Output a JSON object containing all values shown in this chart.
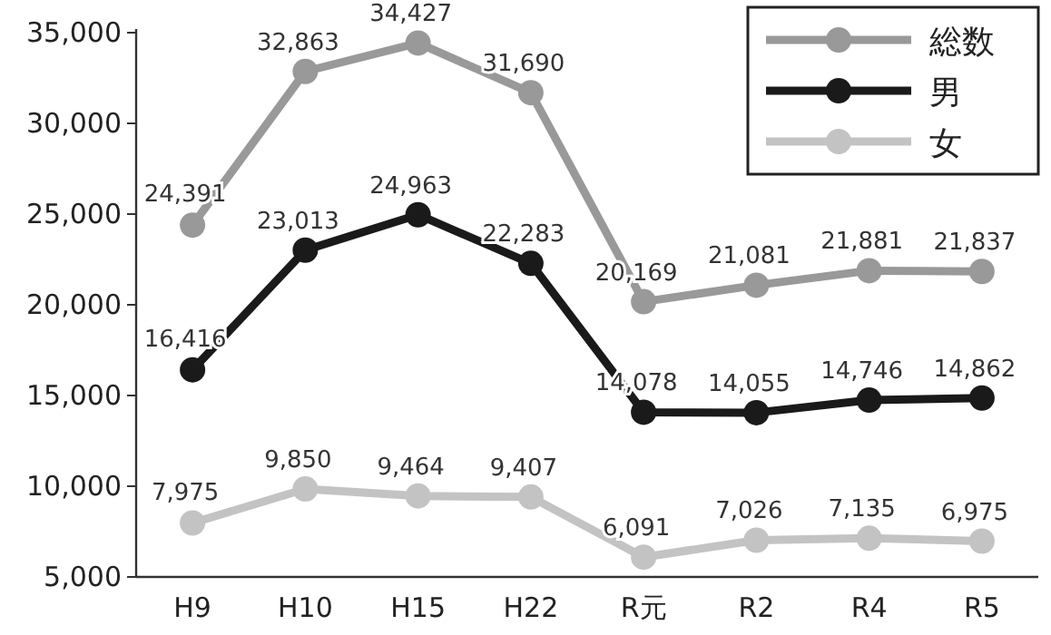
{
  "chart_data": {
    "type": "line",
    "categories": [
      "H9",
      "H10",
      "H15",
      "H22",
      "R元",
      "R2",
      "R4",
      "R5"
    ],
    "series": [
      {
        "name": "総数",
        "color": "#999999",
        "values": [
          24391,
          32863,
          34427,
          31690,
          20169,
          21081,
          21881,
          21837
        ],
        "value_labels": [
          "24,391",
          "32,863",
          "34,427",
          "31,690",
          "20,169",
          "21,081",
          "21,881",
          "21,837"
        ]
      },
      {
        "name": "男",
        "color": "#1a1a1a",
        "values": [
          16416,
          23013,
          24963,
          22283,
          14078,
          14055,
          14746,
          14862
        ],
        "value_labels": [
          "16,416",
          "23,013",
          "24,963",
          "22,283",
          "14,078",
          "14,055",
          "14,746",
          "14,862"
        ]
      },
      {
        "name": "女",
        "color": "#c3c3c3",
        "values": [
          7975,
          9850,
          9464,
          9407,
          6091,
          7026,
          7135,
          6975
        ],
        "value_labels": [
          "7,975",
          "9,850",
          "9,464",
          "9,407",
          "6,091",
          "7,026",
          "7,135",
          "6,975"
        ]
      }
    ],
    "ylim": [
      5000,
      35000
    ],
    "yticks": [
      {
        "value": 5000,
        "label": "5,000"
      },
      {
        "value": 10000,
        "label": "10,000"
      },
      {
        "value": 15000,
        "label": "15,000"
      },
      {
        "value": 20000,
        "label": "20,000"
      },
      {
        "value": 25000,
        "label": "25,000"
      },
      {
        "value": 30000,
        "label": "30,000"
      },
      {
        "value": 35000,
        "label": "35,000"
      }
    ],
    "legend": "top right",
    "marker": "circle",
    "line_style": "solid"
  }
}
